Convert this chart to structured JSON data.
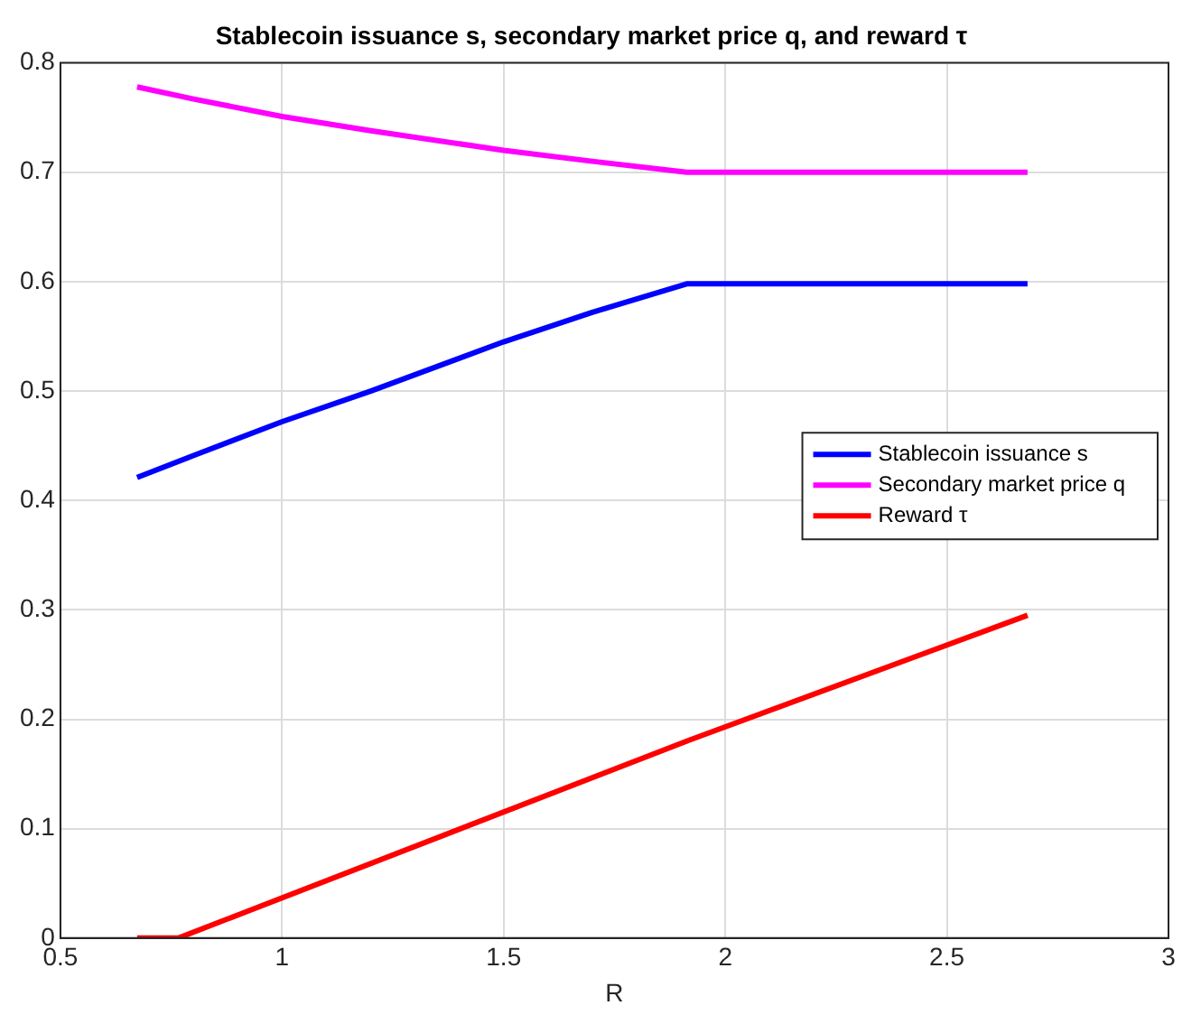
{
  "chart_data": {
    "type": "line",
    "title": "Stablecoin issuance s, secondary market price q, and reward τ",
    "xlabel": "R",
    "xlim": [
      0.5,
      3
    ],
    "xticks": [
      0.5,
      1,
      1.5,
      2,
      2.5,
      3
    ],
    "ylim": [
      0,
      0.8
    ],
    "yticks": [
      0,
      0.1,
      0.2,
      0.3,
      0.4,
      0.5,
      0.6,
      0.7,
      0.8
    ],
    "grid": true,
    "legend": "right",
    "line_style": "solid",
    "marker": "none",
    "series": [
      {
        "name": "Stablecoin issuance s",
        "color": "#0000ff",
        "x": [
          0.673,
          0.8,
          1,
          1.2,
          1.5,
          1.7,
          1.913,
          2.682
        ],
        "values": [
          0.421,
          0.441,
          0.472,
          0.5,
          0.545,
          0.572,
          0.598,
          0.598
        ]
      },
      {
        "name": "Secondary market price q",
        "color": "#ff00ff",
        "x": [
          0.673,
          0.8,
          1,
          1.2,
          1.5,
          1.7,
          1.913,
          2.682
        ],
        "values": [
          0.778,
          0.767,
          0.751,
          0.738,
          0.72,
          0.71,
          0.7,
          0.7
        ]
      },
      {
        "name": "Reward τ",
        "color": "#ff0000",
        "x": [
          0.673,
          0.766,
          1.913,
          2.682
        ],
        "values": [
          0,
          0,
          0.18,
          0.295
        ]
      }
    ]
  }
}
